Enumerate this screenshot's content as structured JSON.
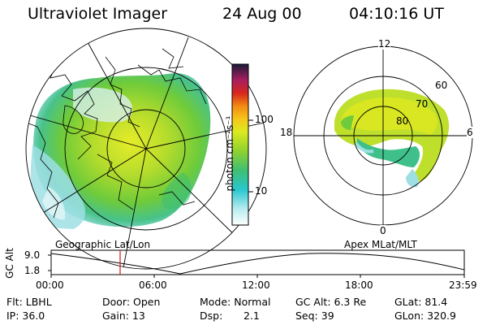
{
  "header": {
    "instrument": "Ultraviolet Imager",
    "date": "24 Aug 00",
    "time": "04:10:16 UT"
  },
  "colorbar": {
    "unit_label": "photon cm⁻²s⁻¹",
    "ticks": [
      "100",
      "10"
    ]
  },
  "maps": {
    "left_label": "Geographic Lat/Lon",
    "right_label": "Apex MLat/MLT",
    "mlt_labels": [
      "12",
      "18",
      "6",
      "0"
    ],
    "mlat_labels": [
      "60",
      "70",
      "80"
    ]
  },
  "timeline": {
    "ylabel": "GC Alt",
    "y_ticks": [
      "9.0",
      "1.8"
    ],
    "x_ticks": [
      "00:00",
      "06:00",
      "12:00",
      "18:00",
      "23:59"
    ],
    "current_time_marker": "04:10"
  },
  "footer": {
    "flt": "Flt: LBHL",
    "ip": "IP: 36.0",
    "door": "Door: Open",
    "gain": "Gain: 13",
    "mode": "Mode: Normal",
    "dsp_label": "Dsp:",
    "dsp_value": "2.1",
    "gcalt": "GC Alt: 6.3 Re",
    "seq": "Seq: 39",
    "glat": "GLat: 81.4",
    "glon": "GLon: 320.9"
  }
}
